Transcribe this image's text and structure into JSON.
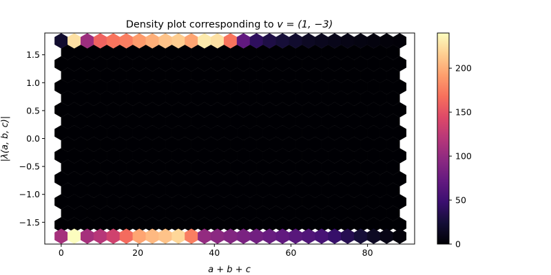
{
  "chart_data": {
    "type": "heatmap",
    "title_prefix": "Density plot corresponding to ",
    "title_math": "v = (1,  −3)",
    "xlabel": "a + b + c",
    "ylabel": "|λ(a, b, c)|",
    "xlim": [
      -4.3,
      92.3
    ],
    "ylim": [
      -1.89,
      1.89
    ],
    "x_ticks": [
      0,
      20,
      40,
      60,
      80
    ],
    "x_tick_labels": [
      "0",
      "20",
      "40",
      "60",
      "80"
    ],
    "y_ticks": [
      1.5,
      1.0,
      0.5,
      0.0,
      -0.5,
      -1.0,
      -1.5
    ],
    "y_tick_labels": [
      "1.5",
      "1.0",
      "0.5",
      "0.0",
      "−0.5",
      "−1.0",
      "−1.5"
    ],
    "colormap": "magma",
    "colorbar": {
      "range": [
        0,
        240
      ],
      "ticks": [
        0,
        50,
        100,
        150,
        200
      ],
      "tick_labels": [
        "0",
        "50",
        "100",
        "150",
        "200"
      ]
    },
    "hex_grid": {
      "x_centers": [
        0,
        3.4,
        6.8,
        10.2,
        13.6,
        17,
        20.4,
        23.8,
        27.2,
        30.6,
        34,
        37.4,
        40.8,
        44.2,
        47.6,
        51,
        54.4,
        57.8,
        61.2,
        64.6,
        68,
        71.4,
        74.8,
        78.2,
        81.6,
        85,
        88.4
      ],
      "y_top": 1.75,
      "y_bottom": -1.75,
      "interior_value": 0
    },
    "top_row_counts": [
      20,
      225,
      105,
      160,
      170,
      175,
      190,
      200,
      210,
      215,
      195,
      230,
      225,
      170,
      70,
      40,
      30,
      25,
      20,
      15,
      12,
      10,
      8,
      6,
      5,
      3,
      2
    ],
    "bottom_row_counts": [
      110,
      240,
      110,
      120,
      135,
      165,
      195,
      205,
      210,
      220,
      175,
      100,
      95,
      90,
      85,
      80,
      75,
      70,
      65,
      60,
      55,
      45,
      35,
      25,
      15,
      8,
      3
    ]
  }
}
